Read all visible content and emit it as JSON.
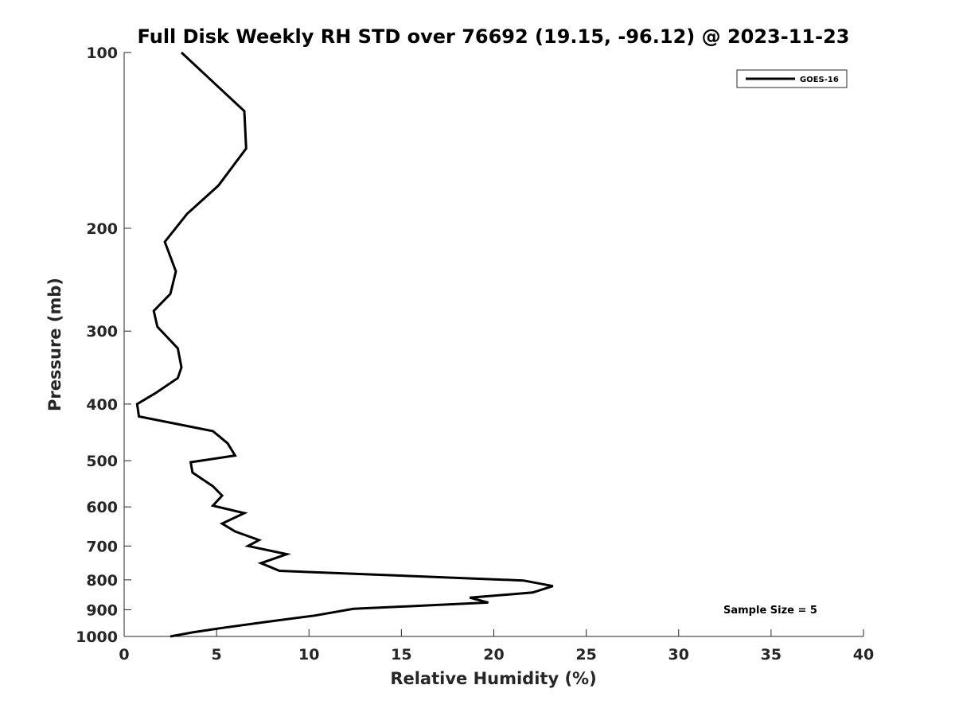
{
  "chart_data": {
    "type": "line",
    "title": "Full Disk Weekly RH STD over 76692 (19.15, -96.12) @ 2023-11-23",
    "xlabel": "Relative Humidity (%)",
    "ylabel": "Pressure (mb)",
    "xlim": [
      0,
      40
    ],
    "ylim": [
      100,
      1000
    ],
    "y_scale": "log",
    "y_reversed": true,
    "xticks": [
      0,
      5,
      10,
      15,
      20,
      25,
      30,
      35,
      40
    ],
    "yticks": [
      100,
      200,
      300,
      400,
      500,
      600,
      700,
      800,
      900,
      1000
    ],
    "legend": {
      "entries": [
        "GOES-16"
      ],
      "position": "top-right"
    },
    "annotation": "Sample Size = 5",
    "series": [
      {
        "name": "GOES-16",
        "color": "#000000",
        "points": [
          [
            3.1,
            100
          ],
          [
            6.5,
            126
          ],
          [
            6.6,
            146
          ],
          [
            5.1,
            169
          ],
          [
            3.4,
            189
          ],
          [
            2.2,
            211
          ],
          [
            2.8,
            237
          ],
          [
            2.5,
            259
          ],
          [
            1.6,
            277
          ],
          [
            1.8,
            295
          ],
          [
            2.9,
            321
          ],
          [
            3.1,
            346
          ],
          [
            2.9,
            361
          ],
          [
            1.7,
            383
          ],
          [
            0.7,
            400
          ],
          [
            0.8,
            420
          ],
          [
            4.8,
            445
          ],
          [
            5.6,
            467
          ],
          [
            6.0,
            490
          ],
          [
            3.6,
            503
          ],
          [
            3.7,
            524
          ],
          [
            4.8,
            553
          ],
          [
            5.3,
            574
          ],
          [
            4.8,
            597
          ],
          [
            6.5,
            615
          ],
          [
            5.3,
            641
          ],
          [
            6.0,
            661
          ],
          [
            7.3,
            684
          ],
          [
            6.7,
            700
          ],
          [
            8.8,
            723
          ],
          [
            7.4,
            749
          ],
          [
            8.4,
            772
          ],
          [
            21.6,
            802
          ],
          [
            23.2,
            820
          ],
          [
            22.1,
            841
          ],
          [
            18.7,
            858
          ],
          [
            19.7,
            875
          ],
          [
            12.4,
            897
          ],
          [
            10.3,
            921
          ],
          [
            7.6,
            945
          ],
          [
            5.3,
            967
          ],
          [
            3.7,
            984
          ],
          [
            2.5,
            1000
          ]
        ]
      }
    ]
  }
}
